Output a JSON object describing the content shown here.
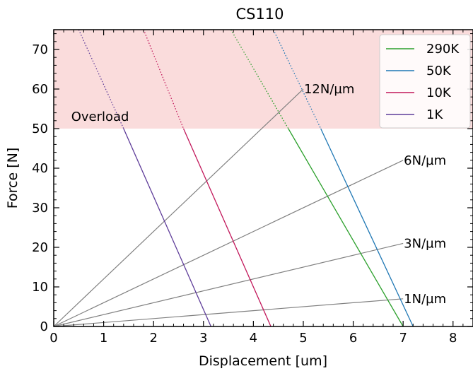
{
  "chart_data": {
    "type": "line",
    "title": "CS110",
    "xlabel": "Displacement [um]",
    "ylabel": "Force [N]",
    "xlim": [
      0,
      8.4
    ],
    "ylim": [
      0,
      75
    ],
    "xticks": [
      "0",
      "1",
      "2",
      "3",
      "4",
      "5",
      "6",
      "7",
      "8"
    ],
    "yticks": [
      "0",
      "10",
      "20",
      "30",
      "40",
      "50",
      "60",
      "70"
    ],
    "grid": false,
    "legend_position": "top-right",
    "overload": {
      "label": "Overload",
      "min": 50,
      "max": 75,
      "color": "#fadcdc"
    },
    "series": [
      {
        "name": "290K",
        "color": "#2ca02c",
        "points": [
          [
            3.55,
            75
          ],
          [
            4.7,
            50
          ],
          [
            7.0,
            0
          ]
        ]
      },
      {
        "name": "50K",
        "color": "#1f77b4",
        "points": [
          [
            4.4,
            75
          ],
          [
            5.35,
            50
          ],
          [
            7.2,
            0
          ]
        ]
      },
      {
        "name": "10K",
        "color": "#c2185b",
        "points": [
          [
            1.8,
            75
          ],
          [
            2.6,
            50
          ],
          [
            4.35,
            0
          ]
        ]
      },
      {
        "name": "1K",
        "color": "#5e3c99",
        "points": [
          [
            0.5,
            75
          ],
          [
            1.4,
            50
          ],
          [
            3.15,
            0
          ]
        ]
      }
    ],
    "stiffness_lines": [
      {
        "label": "12N/µm",
        "color": "#808080",
        "points": [
          [
            0,
            0
          ],
          [
            5.0,
            60
          ]
        ]
      },
      {
        "label": "6N/µm",
        "color": "#808080",
        "points": [
          [
            0,
            0
          ],
          [
            7.0,
            42
          ]
        ]
      },
      {
        "label": "3N/µm",
        "color": "#808080",
        "points": [
          [
            0,
            0
          ],
          [
            7.0,
            21
          ]
        ]
      },
      {
        "label": "1N/µm",
        "color": "#808080",
        "points": [
          [
            0,
            0
          ],
          [
            7.0,
            7
          ]
        ]
      }
    ]
  }
}
